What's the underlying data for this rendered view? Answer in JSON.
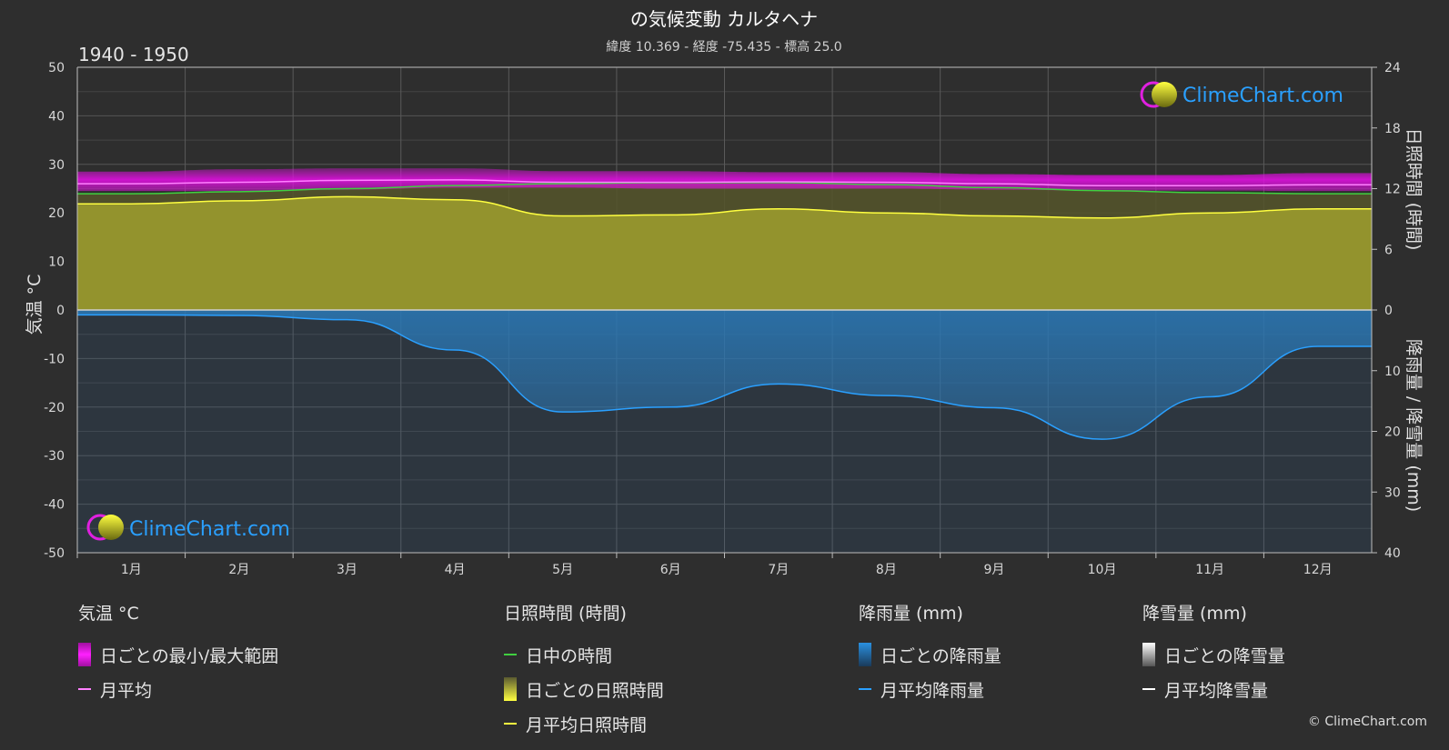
{
  "header": {
    "title": "の気候変動 カルタヘナ",
    "subtitle": "緯度 10.369 - 経度 -75.435 - 標高 25.0",
    "period": "1940 - 1950"
  },
  "branding": {
    "logo_text": "ClimeChart.com",
    "copyright": "© ClimeChart.com"
  },
  "chart_data": {
    "type": "area",
    "categories": [
      "1月",
      "2月",
      "3月",
      "4月",
      "5月",
      "6月",
      "7月",
      "8月",
      "9月",
      "10月",
      "11月",
      "12月"
    ],
    "left_axis": {
      "label": "気温 °C",
      "range": [
        -50,
        50
      ],
      "ticks": [
        50,
        40,
        30,
        20,
        10,
        0,
        -10,
        -20,
        -30,
        -40,
        -50
      ]
    },
    "right_axis_top": {
      "label": "日照時間 (時間)",
      "range": [
        0,
        24
      ],
      "ticks": [
        24,
        18,
        12,
        6,
        0
      ]
    },
    "right_axis_bottom": {
      "label": "降雨量 / 降雪量 (mm)",
      "range": [
        0,
        40
      ],
      "ticks": [
        0,
        10,
        20,
        30,
        40
      ]
    },
    "series": [
      {
        "name": "日ごとの最小/最大範囲",
        "min": [
          24.5,
          24.5,
          24.8,
          25.2,
          25.2,
          25.0,
          25.0,
          25.0,
          24.8,
          24.6,
          24.6,
          24.5
        ],
        "max": [
          28.5,
          29.0,
          29.2,
          29.2,
          28.6,
          28.6,
          28.4,
          28.4,
          28.0,
          27.8,
          27.8,
          28.2
        ]
      },
      {
        "name": "月平均",
        "values": [
          26.0,
          26.3,
          26.7,
          26.8,
          26.3,
          26.3,
          26.4,
          26.3,
          26.0,
          25.6,
          25.6,
          25.8
        ]
      },
      {
        "name": "日中の時間",
        "values": [
          11.5,
          11.7,
          12.0,
          12.3,
          12.5,
          12.6,
          12.6,
          12.4,
          12.1,
          11.8,
          11.6,
          11.5
        ]
      },
      {
        "name": "月平均日照時間",
        "values": [
          10.5,
          10.8,
          11.2,
          10.9,
          9.3,
          9.4,
          10.0,
          9.6,
          9.3,
          9.1,
          9.6,
          10.0
        ]
      },
      {
        "name": "月平均降雨量",
        "values": [
          0.8,
          0.9,
          1.6,
          6.6,
          16.8,
          16.0,
          12.2,
          14.1,
          16.1,
          21.3,
          14.3,
          6.0
        ]
      },
      {
        "name": "月平均降雪量",
        "values": [
          0,
          0,
          0,
          0,
          0,
          0,
          0,
          0,
          0,
          0,
          0,
          0
        ]
      }
    ],
    "grid": true
  },
  "legend": {
    "temp": {
      "title": "気温 °C",
      "items": [
        "日ごとの最小/最大範囲",
        "月平均"
      ]
    },
    "sun": {
      "title": "日照時間 (時間)",
      "items": [
        "日中の時間",
        "日ごとの日照時間",
        "月平均日照時間"
      ]
    },
    "rain": {
      "title": "降雨量 (mm)",
      "items": [
        "日ごとの降雨量",
        "月平均降雨量"
      ]
    },
    "snow": {
      "title": "降雪量 (mm)",
      "items": [
        "日ごとの降雪量",
        "月平均降雪量"
      ]
    }
  },
  "colors": {
    "temp_range": "#e010e0",
    "temp_mean": "#ff80ff",
    "daylight": "#40d040",
    "sunshine": "#c8c838",
    "sunshine_mean": "#ffff40",
    "rain": "#2a7fc0",
    "rain_mean": "#2aa0ff",
    "snow_mean": "#ffffff"
  }
}
